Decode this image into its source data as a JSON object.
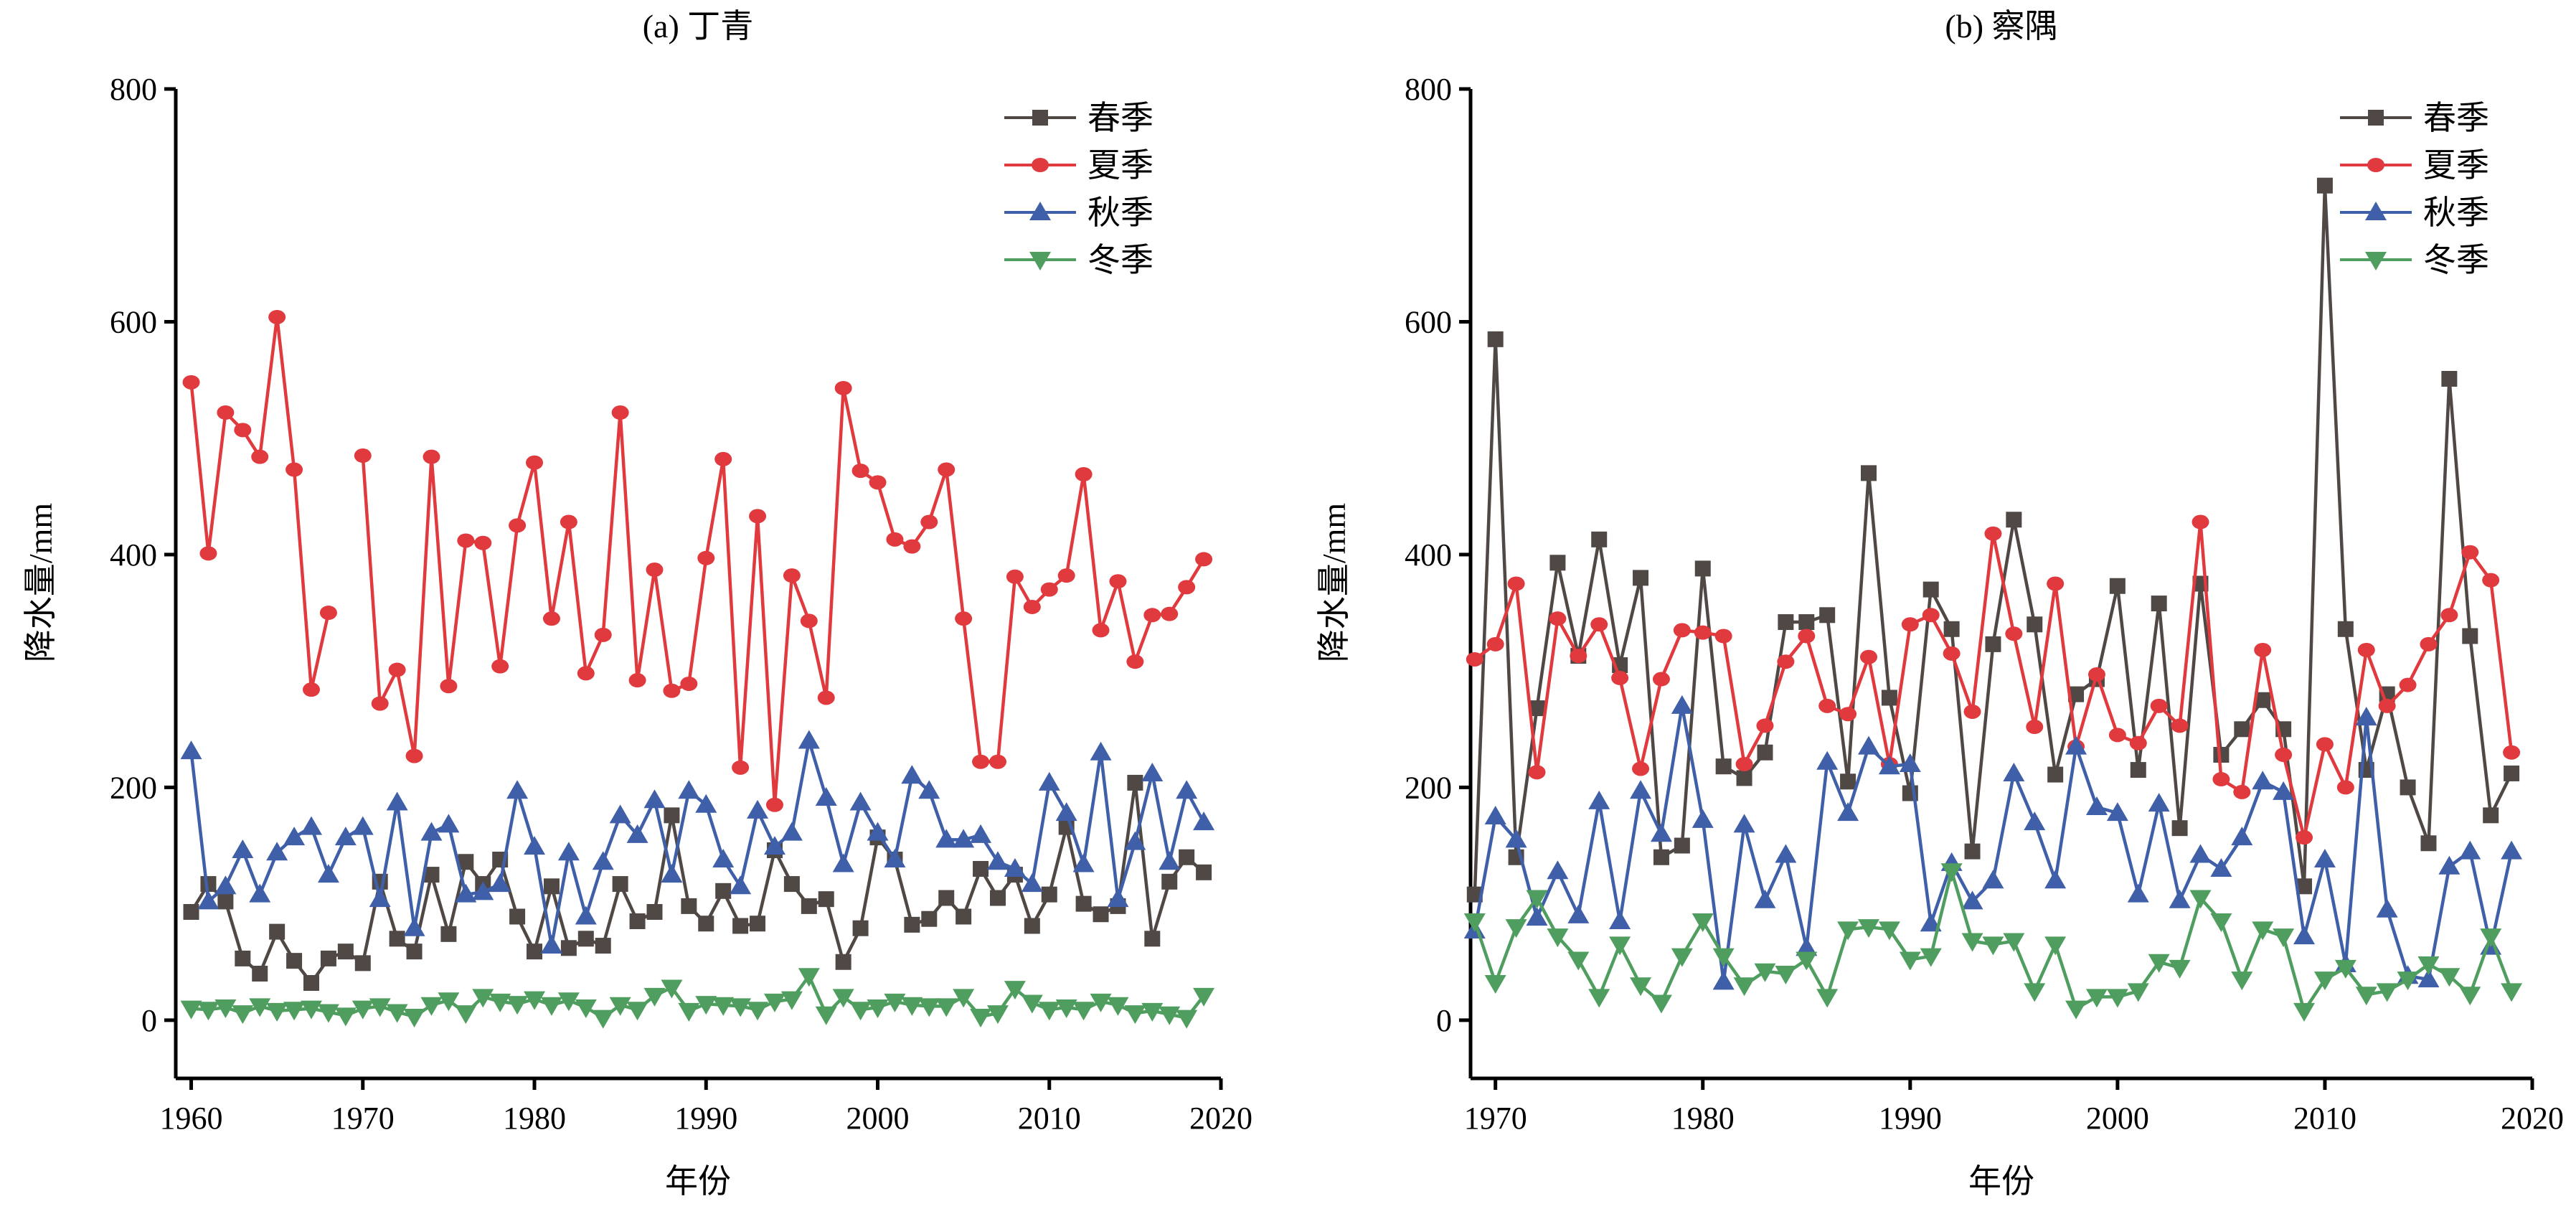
{
  "chart_data": [
    {
      "type": "line",
      "title": "(a) 丁青",
      "xlabel": "年份",
      "ylabel": "降水量/mm",
      "xlim": [
        1959.1,
        2020
      ],
      "ylim": [
        -50,
        800
      ],
      "xticks": [
        1960,
        1970,
        1980,
        1990,
        2000,
        2010,
        2020
      ],
      "yticks": [
        0,
        200,
        400,
        600,
        800
      ],
      "legend_position": "top-right",
      "grid": false,
      "x_start": 1960,
      "series": [
        {
          "name": "春季",
          "color": "#4f4845",
          "marker": "square",
          "values": [
            93,
            117,
            102,
            53,
            40,
            76,
            51,
            32,
            53,
            59,
            49,
            119,
            70,
            59,
            125,
            74,
            136,
            117,
            138,
            89,
            59,
            115,
            62,
            70,
            64,
            117,
            85,
            93,
            176,
            98,
            83,
            111,
            81,
            83,
            146,
            117,
            98,
            104,
            50,
            79,
            157,
            138,
            82,
            87,
            105,
            89,
            130,
            105,
            125,
            81,
            108,
            166,
            100,
            91,
            98,
            204,
            70,
            119,
            140,
            127
          ]
        },
        {
          "name": "夏季",
          "color": "#e0393e",
          "marker": "circle",
          "values": [
            548,
            401,
            522,
            507,
            484,
            604,
            473,
            284,
            350,
            null,
            485,
            272,
            301,
            227,
            484,
            287,
            412,
            410,
            304,
            425,
            479,
            345,
            428,
            298,
            331,
            522,
            292,
            387,
            283,
            289,
            397,
            482,
            217,
            433,
            185,
            382,
            343,
            277,
            543,
            472,
            462,
            413,
            407,
            428,
            473,
            345,
            222,
            222,
            381,
            355,
            370,
            382,
            469,
            335,
            377,
            308,
            348,
            349,
            372,
            396
          ]
        },
        {
          "name": "秋季",
          "color": "#3f5fa8",
          "marker": "triangle-up",
          "values": [
            231,
            102,
            115,
            146,
            108,
            144,
            157,
            166,
            125,
            157,
            166,
            104,
            187,
            79,
            161,
            168,
            108,
            110,
            117,
            197,
            149,
            64,
            144,
            89,
            136,
            176,
            159,
            189,
            125,
            197,
            185,
            138,
            115,
            180,
            149,
            161,
            240,
            191,
            134,
            187,
            161,
            138,
            210,
            197,
            155,
            155,
            159,
            136,
            130,
            117,
            204,
            178,
            134,
            230,
            104,
            153,
            212,
            136,
            197,
            170
          ]
        },
        {
          "name": "冬季",
          "color": "#4f9e5f",
          "marker": "triangle-down",
          "values": [
            10,
            9,
            11,
            6,
            12,
            8,
            9,
            10,
            7,
            4,
            10,
            12,
            7,
            3,
            13,
            17,
            6,
            20,
            16,
            14,
            18,
            13,
            17,
            11,
            2,
            13,
            9,
            21,
            28,
            8,
            14,
            13,
            12,
            9,
            16,
            18,
            38,
            5,
            20,
            9,
            11,
            16,
            13,
            12,
            12,
            20,
            3,
            6,
            27,
            15,
            9,
            11,
            9,
            16,
            13,
            6,
            8,
            5,
            2,
            21
          ]
        }
      ]
    },
    {
      "type": "line",
      "title": "(b) 察隅",
      "xlabel": "年份",
      "ylabel": "降水量/mm",
      "xlim": [
        1968.8,
        2020
      ],
      "ylim": [
        -50,
        800
      ],
      "xticks": [
        1970,
        1980,
        1990,
        2000,
        2010,
        2020
      ],
      "yticks": [
        0,
        200,
        400,
        600,
        800
      ],
      "legend_position": "top-right",
      "grid": false,
      "x_start": 1969,
      "series": [
        {
          "name": "春季",
          "color": "#4f4845",
          "marker": "square",
          "values": [
            108,
            585,
            140,
            268,
            393,
            313,
            413,
            305,
            380,
            140,
            150,
            388,
            218,
            208,
            230,
            342,
            342,
            348,
            205,
            470,
            277,
            195,
            370,
            336,
            145,
            323,
            430,
            340,
            211,
            280,
            293,
            373,
            215,
            358,
            165,
            375,
            228,
            250,
            275,
            250,
            115,
            717,
            336,
            215,
            280,
            200,
            152,
            551,
            330,
            176,
            212
          ]
        },
        {
          "name": "夏季",
          "color": "#e0393e",
          "marker": "circle",
          "values": [
            310,
            323,
            375,
            213,
            345,
            313,
            340,
            294,
            216,
            293,
            335,
            333,
            330,
            220,
            253,
            308,
            330,
            270,
            263,
            312,
            220,
            340,
            348,
            315,
            265,
            418,
            332,
            252,
            375,
            235,
            297,
            245,
            238,
            270,
            253,
            428,
            207,
            196,
            318,
            228,
            157,
            237,
            200,
            318,
            270,
            288,
            323,
            348,
            402,
            378,
            230
          ]
        },
        {
          "name": "秋季",
          "color": "#3f5fa8",
          "marker": "triangle-up",
          "values": [
            77,
            175,
            155,
            88,
            128,
            90,
            188,
            85,
            197,
            160,
            270,
            172,
            33,
            168,
            103,
            142,
            62,
            222,
            178,
            235,
            218,
            220,
            83,
            135,
            102,
            120,
            212,
            170,
            120,
            235,
            183,
            178,
            108,
            186,
            103,
            142,
            130,
            157,
            205,
            196,
            72,
            138,
            48,
            260,
            95,
            38,
            35,
            132,
            145,
            63,
            145
          ]
        },
        {
          "name": "冬季",
          "color": "#4f9e5f",
          "marker": "triangle-down",
          "values": [
            85,
            32,
            80,
            105,
            72,
            52,
            20,
            65,
            30,
            15,
            55,
            85,
            55,
            30,
            42,
            40,
            52,
            20,
            78,
            80,
            78,
            52,
            55,
            128,
            68,
            65,
            68,
            25,
            65,
            10,
            20,
            20,
            25,
            50,
            45,
            105,
            85,
            35,
            78,
            72,
            8,
            35,
            45,
            22,
            25,
            35,
            48,
            38,
            22,
            72,
            25
          ]
        }
      ]
    }
  ]
}
